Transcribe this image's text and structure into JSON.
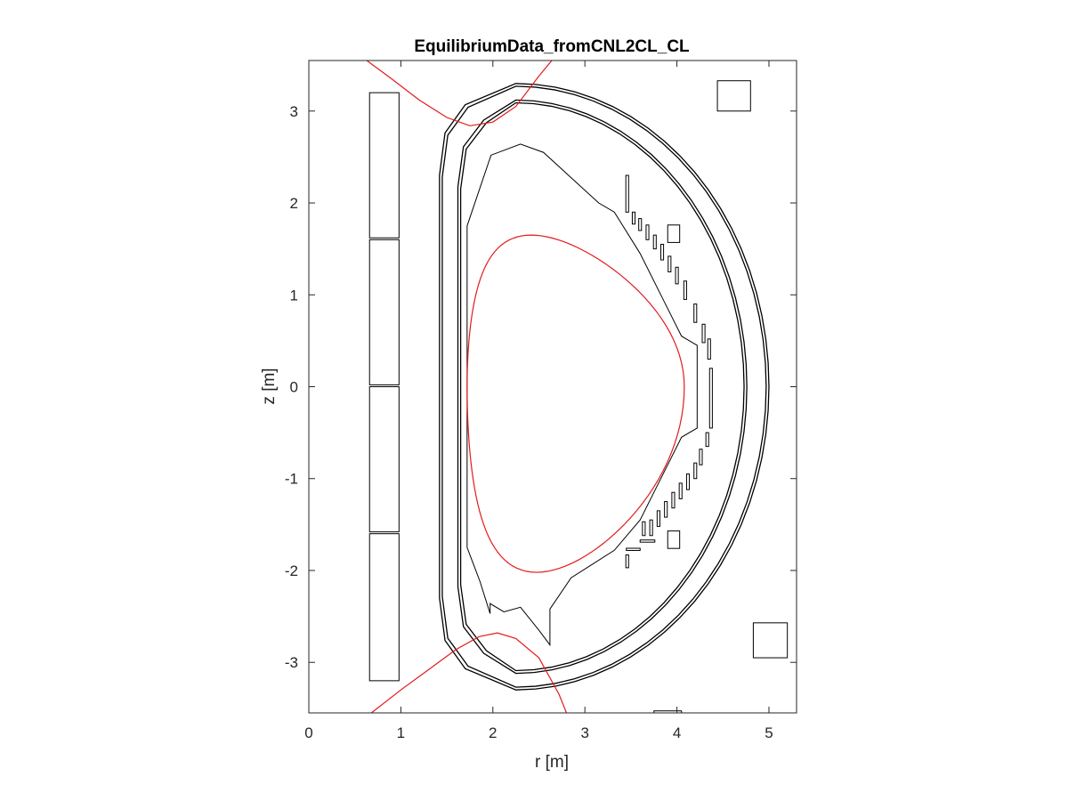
{
  "chart_data": {
    "type": "line",
    "title": "EquilibriumData_fromCNL2CL_CL",
    "xlabel": "r [m]",
    "ylabel": "z [m]",
    "xlim": [
      0,
      5.3
    ],
    "ylim": [
      -3.55,
      3.55
    ],
    "xticks": [
      0,
      1,
      2,
      3,
      4,
      5
    ],
    "yticks": [
      -3,
      -2,
      -1,
      0,
      1,
      2,
      3
    ],
    "xtick_labels": [
      "0",
      "1",
      "2",
      "3",
      "4",
      "5"
    ],
    "ytick_labels": [
      "-3",
      "-2",
      "-1",
      "0",
      "1",
      "2",
      "3"
    ],
    "grid": false,
    "colors": {
      "structure": "#000000",
      "plasma": "#e31a1c",
      "axes": "#262626"
    },
    "central_solenoid_coils": [
      {
        "r1": 0.66,
        "z1": 1.62,
        "r2": 0.98,
        "z2": 3.2
      },
      {
        "r1": 0.66,
        "z1": 0.02,
        "r2": 0.98,
        "z2": 1.6
      },
      {
        "r1": 0.66,
        "z1": -1.58,
        "r2": 0.98,
        "z2": 0.0
      },
      {
        "r1": 0.66,
        "z1": -3.2,
        "r2": 0.98,
        "z2": -1.6
      }
    ],
    "pf_coils": [
      {
        "r1": 4.44,
        "z1": 3.0,
        "r2": 4.8,
        "z2": 3.33
      },
      {
        "r1": 4.83,
        "z1": -2.95,
        "r2": 5.2,
        "z2": -2.57
      },
      {
        "r1": 3.9,
        "z1": 1.57,
        "r2": 4.03,
        "z2": 1.76
      },
      {
        "r1": 3.9,
        "z1": -1.76,
        "r2": 4.03,
        "z2": -1.57
      }
    ],
    "vessel_shells": [
      {
        "name": "outer-shell-outer",
        "r_in": 1.42,
        "z_half": 3.3,
        "r_apex": 2.25,
        "r_out": 5.0
      },
      {
        "name": "outer-shell-inner",
        "r_in": 1.45,
        "z_half": 3.27,
        "r_apex": 2.25,
        "r_out": 4.97
      },
      {
        "name": "inner-shell-outer",
        "r_in": 1.62,
        "z_half": 3.12,
        "r_apex": 2.25,
        "r_out": 4.76
      },
      {
        "name": "inner-shell-inner",
        "r_in": 1.65,
        "z_half": 3.09,
        "r_apex": 2.25,
        "r_out": 4.73
      }
    ],
    "first_wall": {
      "r": [
        1.72,
        1.72,
        1.98,
        2.3,
        2.55,
        3.15,
        3.32,
        3.6,
        3.85,
        4.05,
        4.22,
        4.22,
        4.05,
        3.85,
        3.6,
        3.32,
        2.85,
        2.62,
        2.62,
        2.5,
        2.3,
        2.12,
        1.97,
        1.97,
        1.86,
        1.72,
        1.72
      ],
      "z": [
        1.75,
        1.75,
        2.52,
        2.64,
        2.55,
        2.0,
        1.9,
        1.45,
        0.95,
        0.55,
        0.45,
        -0.45,
        -0.55,
        -0.95,
        -1.45,
        -1.78,
        -2.08,
        -2.42,
        -2.81,
        -2.65,
        -2.4,
        -2.45,
        -2.36,
        -2.47,
        -2.12,
        -1.75,
        1.75
      ]
    },
    "divertor_plates": [
      {
        "r": 3.46,
        "z1": 1.9,
        "z2": 2.3
      },
      {
        "r": 3.53,
        "z1": 1.77,
        "z2": 1.9
      },
      {
        "r": 3.6,
        "z1": 1.7,
        "z2": 1.83
      },
      {
        "r": 3.68,
        "z1": 1.6,
        "z2": 1.76
      },
      {
        "r": 3.76,
        "z1": 1.5,
        "z2": 1.65
      },
      {
        "r": 3.84,
        "z1": 1.38,
        "z2": 1.55
      },
      {
        "r": 3.92,
        "z1": 1.25,
        "z2": 1.42
      },
      {
        "r": 4.0,
        "z1": 1.12,
        "z2": 1.3
      },
      {
        "r": 4.09,
        "z1": 0.95,
        "z2": 1.15
      },
      {
        "r": 4.2,
        "z1": 0.7,
        "z2": 0.9
      },
      {
        "r": 4.29,
        "z1": 0.48,
        "z2": 0.68
      },
      {
        "r": 4.35,
        "z1": 0.3,
        "z2": 0.52
      },
      {
        "r": 4.37,
        "z1": -0.45,
        "z2": 0.2
      },
      {
        "r": 4.33,
        "z1": -0.65,
        "z2": -0.5
      },
      {
        "r": 4.26,
        "z1": -0.85,
        "z2": -0.68
      },
      {
        "r": 4.2,
        "z1": -1.0,
        "z2": -0.83
      },
      {
        "r": 4.12,
        "z1": -1.12,
        "z2": -0.95
      },
      {
        "r": 4.04,
        "z1": -1.22,
        "z2": -1.05
      },
      {
        "r": 3.96,
        "z1": -1.32,
        "z2": -1.15
      },
      {
        "r": 3.88,
        "z1": -1.42,
        "z2": -1.25
      },
      {
        "r": 3.8,
        "z1": -1.52,
        "z2": -1.35
      },
      {
        "r": 3.72,
        "z1": -1.62,
        "z2": -1.45
      },
      {
        "r": 3.64,
        "z1": -1.62,
        "z2": -1.47
      },
      {
        "r": 3.46,
        "z1": -1.97,
        "z2": -1.83
      }
    ],
    "horizontal_plates": [
      {
        "r1": 3.6,
        "r2": 3.76,
        "z": -1.68
      },
      {
        "r1": 3.45,
        "r2": 3.6,
        "z": -1.77
      },
      {
        "r1": 3.75,
        "r2": 4.05,
        "z": -3.54
      }
    ],
    "plasma_boundary": {
      "center_r": 2.45,
      "top_r": 2.55,
      "top_z": 1.65,
      "bottom_r": 2.45,
      "bottom_z": -2.02,
      "r_in": 1.72,
      "r_out": 4.08
    },
    "separatrix_upper": {
      "r": [
        0.63,
        0.9,
        1.2,
        1.5,
        1.75,
        2.0,
        2.25,
        2.5,
        2.64
      ],
      "z": [
        3.55,
        3.35,
        3.12,
        2.93,
        2.84,
        2.88,
        3.05,
        3.38,
        3.55
      ]
    },
    "separatrix_lower": {
      "r": [
        0.68,
        1.0,
        1.3,
        1.6,
        1.85,
        2.05,
        2.25,
        2.5,
        2.72,
        2.8
      ],
      "z": [
        -3.55,
        -3.3,
        -3.08,
        -2.86,
        -2.72,
        -2.68,
        -2.74,
        -2.95,
        -3.35,
        -3.55
      ]
    }
  }
}
